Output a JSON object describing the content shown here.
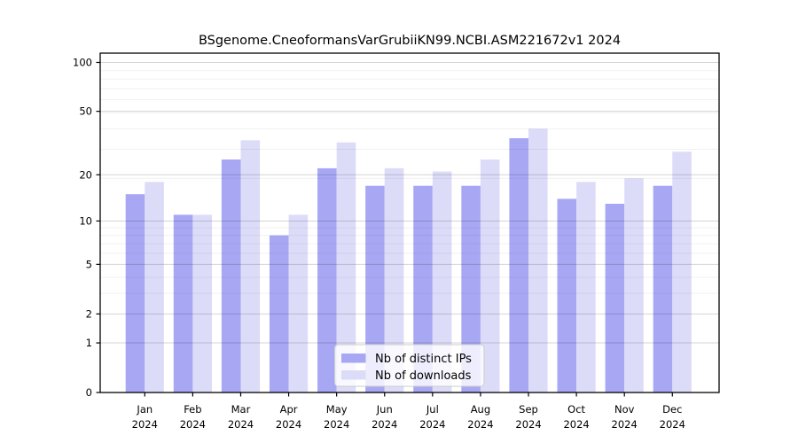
{
  "chart_data": {
    "type": "bar",
    "title": "BSgenome.CneoformansVarGrubiiKN99.NCBI.ASM221672v1 2024",
    "year_label": "2024",
    "categories": [
      "Jan",
      "Feb",
      "Mar",
      "Apr",
      "May",
      "Jun",
      "Jul",
      "Aug",
      "Sep",
      "Oct",
      "Nov",
      "Dec"
    ],
    "series": [
      {
        "name": "Nb of distinct IPs",
        "color": "#a7a7f4",
        "values": [
          15,
          11,
          25,
          8,
          22,
          17,
          17,
          17,
          34,
          14,
          13,
          17
        ]
      },
      {
        "name": "Nb of downloads",
        "color": "#dcdcf9",
        "values": [
          18,
          11,
          33,
          11,
          32,
          22,
          21,
          25,
          39,
          18,
          19,
          28
        ]
      }
    ],
    "y_scale": "log1p",
    "y_ticks": [
      0,
      1,
      2,
      5,
      10,
      20,
      50,
      100
    ],
    "y_minor_gridlines": [
      3,
      4,
      6,
      7,
      8,
      9,
      19,
      29,
      39,
      49,
      59,
      69,
      79,
      89
    ],
    "ylim": [
      0,
      114
    ],
    "xlabel": "",
    "ylabel": "",
    "grid": true,
    "legend_position": "bottom-center"
  },
  "colors": {
    "axis": "#000000",
    "grid_major": "rgba(0,0,0,0.17)",
    "grid_minor": "rgba(0,0,0,0.055)",
    "legend_border": "#cccccc",
    "legend_bg": "rgba(255,255,255,0.8)"
  }
}
